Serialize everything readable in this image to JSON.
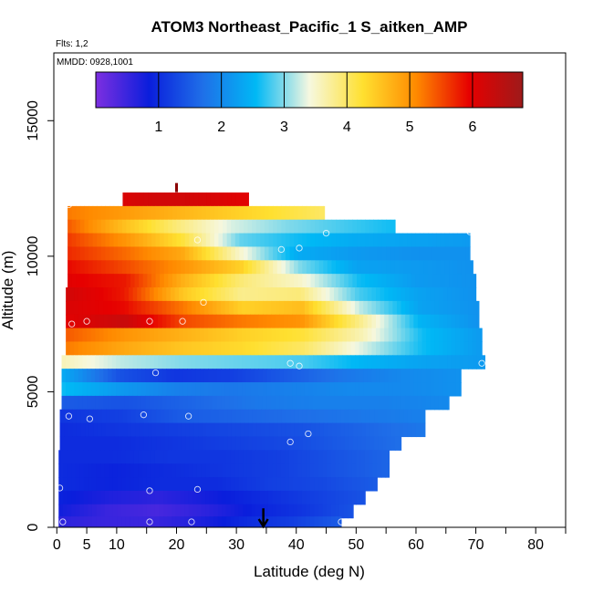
{
  "chart_data": {
    "type": "heatmap",
    "title": "ATOM3 Northeast_Pacific_1 S_aitken_AMP",
    "flights_label": "Flts: 1,2",
    "dates_label": "MMDD: 0928,1001",
    "xlabel": "Latitude (deg N)",
    "ylabel": "Altitude (m)",
    "xlim": [
      -0.5,
      85
    ],
    "ylim": [
      0,
      17500
    ],
    "x_ticks": [
      0,
      5,
      10,
      20,
      30,
      40,
      50,
      60,
      70,
      80
    ],
    "y_ticks": [
      0,
      5000,
      10000,
      15000
    ],
    "colorbar": {
      "range": [
        0,
        6.8
      ],
      "ticks": [
        1,
        2,
        3,
        4,
        5,
        6
      ],
      "colors": [
        "#7d2fe0",
        "#0a1edc",
        "#1f6fe8",
        "#00b8f5",
        "#f6f8e0",
        "#ffe030",
        "#ff8a00",
        "#e60000",
        "#9e1a1a"
      ]
    },
    "layers": [
      {
        "alt": 12100,
        "lat_start": 11,
        "lat_end": 32,
        "values": [
          6.1,
          6.2,
          6.2,
          6.1,
          6.0
        ]
      },
      {
        "alt": 11600,
        "lat_start": 1.8,
        "lat_end": 44.7,
        "values": [
          5.2,
          5.0,
          4.8,
          4.6,
          4.4,
          4.2,
          4.0
        ]
      },
      {
        "alt": 11100,
        "lat_start": 1.8,
        "lat_end": 56.5,
        "values": [
          5.4,
          4.6,
          3.9,
          3.3,
          3.0,
          2.8,
          2.6
        ]
      },
      {
        "alt": 10600,
        "lat_start": 1.8,
        "lat_end": 69,
        "values": [
          5.6,
          5.0,
          4.2,
          2.9,
          2.6,
          2.4,
          2.3,
          2.2
        ]
      },
      {
        "alt": 10100,
        "lat_start": 1.8,
        "lat_end": 69,
        "values": [
          5.7,
          5.3,
          4.8,
          3.5,
          2.4,
          2.2,
          2.1,
          2.1
        ]
      },
      {
        "alt": 9600,
        "lat_start": 1.8,
        "lat_end": 69.5,
        "values": [
          5.9,
          5.5,
          5.0,
          4.4,
          3.0,
          2.3,
          2.2,
          2.1
        ]
      },
      {
        "alt": 9100,
        "lat_start": 1.8,
        "lat_end": 70,
        "values": [
          6.0,
          5.8,
          4.7,
          3.9,
          3.5,
          2.6,
          2.2,
          2.1
        ]
      },
      {
        "alt": 8600,
        "lat_start": 1.5,
        "lat_end": 70,
        "values": [
          6.2,
          5.8,
          4.5,
          3.8,
          3.9,
          2.8,
          2.3,
          2.1
        ]
      },
      {
        "alt": 8100,
        "lat_start": 1.5,
        "lat_end": 70.5,
        "values": [
          6.1,
          5.9,
          5.2,
          4.4,
          4.6,
          3.2,
          2.3,
          2.1
        ]
      },
      {
        "alt": 7600,
        "lat_start": 1.5,
        "lat_end": 70.5,
        "values": [
          6.0,
          6.3,
          5.5,
          5.2,
          5.0,
          3.8,
          2.5,
          2.1
        ]
      },
      {
        "alt": 7100,
        "lat_start": 1.5,
        "lat_end": 71,
        "values": [
          5.4,
          5.0,
          4.7,
          4.4,
          4.2,
          3.6,
          2.6,
          2.2
        ]
      },
      {
        "alt": 6600,
        "lat_start": 1.5,
        "lat_end": 71,
        "values": [
          5.2,
          4.8,
          4.5,
          4.3,
          4.0,
          3.3,
          2.6,
          2.2
        ]
      },
      {
        "alt": 6100,
        "lat_start": 0.8,
        "lat_end": 71.5,
        "values": [
          3.6,
          3.2,
          3.0,
          2.9,
          2.8,
          2.5,
          2.3,
          2.2
        ]
      },
      {
        "alt": 5600,
        "lat_start": 0.8,
        "lat_end": 67.5,
        "values": [
          2.4,
          1.4,
          1.1,
          1.2,
          1.5,
          1.8,
          2.0,
          2.1
        ]
      },
      {
        "alt": 5100,
        "lat_start": 0.8,
        "lat_end": 67.5,
        "values": [
          2.6,
          2.2,
          1.9,
          1.8,
          1.9,
          2.0,
          2.0,
          2.1
        ]
      },
      {
        "alt": 4600,
        "lat_start": 0.8,
        "lat_end": 65.5,
        "values": [
          1.5,
          1.4,
          1.6,
          1.8,
          1.9,
          1.9,
          2.0
        ]
      },
      {
        "alt": 4100,
        "lat_start": 0.5,
        "lat_end": 61.5,
        "values": [
          1.1,
          1.2,
          1.5,
          1.6,
          1.7,
          1.8,
          1.9
        ]
      },
      {
        "alt": 3600,
        "lat_start": 0.5,
        "lat_end": 61.5,
        "values": [
          1.0,
          1.1,
          1.2,
          1.3,
          1.4,
          1.6,
          1.8
        ]
      },
      {
        "alt": 3100,
        "lat_start": 0.5,
        "lat_end": 57.5,
        "values": [
          1.0,
          1.0,
          1.1,
          1.2,
          1.3,
          1.5,
          1.7
        ]
      },
      {
        "alt": 2600,
        "lat_start": 0.3,
        "lat_end": 55.5,
        "values": [
          1.0,
          1.0,
          1.1,
          1.1,
          1.2,
          1.4,
          1.6
        ]
      },
      {
        "alt": 2100,
        "lat_start": 0.3,
        "lat_end": 55.5,
        "values": [
          1.0,
          0.9,
          1.0,
          1.1,
          1.2,
          1.4,
          1.6
        ]
      },
      {
        "alt": 1600,
        "lat_start": 0.3,
        "lat_end": 53.5,
        "values": [
          1.0,
          0.9,
          1.0,
          1.0,
          1.2,
          1.3,
          1.5
        ]
      },
      {
        "alt": 1100,
        "lat_start": 0.3,
        "lat_end": 51.5,
        "values": [
          0.9,
          0.7,
          0.6,
          0.8,
          1.0,
          1.2,
          1.4
        ]
      },
      {
        "alt": 600,
        "lat_start": 0.3,
        "lat_end": 49.5,
        "values": [
          0.8,
          0.5,
          0.4,
          0.6,
          0.9,
          1.1,
          1.4
        ]
      },
      {
        "alt": 150,
        "lat_start": 0.3,
        "lat_end": 47.5,
        "values": [
          0.6,
          0.5,
          0.5,
          0.7,
          1.0,
          1.2,
          1.5
        ]
      }
    ],
    "points": [
      [
        2,
        11900
      ],
      [
        1,
        12050
      ],
      [
        23.5,
        10600
      ],
      [
        37.5,
        10250
      ],
      [
        40.5,
        10300
      ],
      [
        45,
        10850
      ],
      [
        69,
        10900
      ],
      [
        24.5,
        8300
      ],
      [
        2.5,
        7500
      ],
      [
        5,
        7600
      ],
      [
        21,
        7600
      ],
      [
        15.5,
        7600
      ],
      [
        71,
        6050
      ],
      [
        39,
        6050
      ],
      [
        40.5,
        5950
      ],
      [
        16.5,
        5700
      ],
      [
        2,
        4100
      ],
      [
        5.5,
        4000
      ],
      [
        14.5,
        4150
      ],
      [
        22,
        4100
      ],
      [
        42,
        3450
      ],
      [
        39,
        3150
      ],
      [
        0.5,
        1450
      ],
      [
        15.5,
        1350
      ],
      [
        23.5,
        1400
      ],
      [
        1,
        200
      ],
      [
        15.5,
        200
      ],
      [
        22.5,
        200
      ],
      [
        47.5,
        200
      ]
    ],
    "markers": {
      "top_latitude": 20,
      "top_altitude": 12700,
      "bottom_latitude": 34.5,
      "bottom_altitude": 700
    }
  }
}
